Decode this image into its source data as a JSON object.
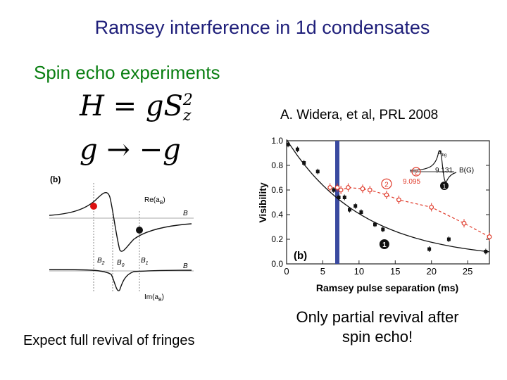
{
  "slide": {
    "title": "Ramsey interference in 1d condensates",
    "subtitle": "Spin echo experiments",
    "citation": "A. Widera, et al, PRL 2008",
    "caption_left": "Expect full revival of fringes",
    "caption_right": "Only partial revival after spin echo!"
  },
  "equations": {
    "hamiltonian": {
      "lhs": "H",
      "op": " = ",
      "coef": "g",
      "S": "S",
      "sup": "2",
      "sub": "z"
    },
    "flip": {
      "from": "g",
      "arrow": " → ",
      "to": "−g"
    }
  },
  "left_diagram": {
    "panel_label": "(b)",
    "re_label": "Re(a",
    "re_sub": "B",
    "im_label": "Im(a",
    "im_sub": "B",
    "axis_label_B": "B",
    "b2": "B",
    "b2_sub": "2",
    "b0": "B",
    "b0_sub": "0",
    "b1": "B",
    "b1_sub": "1",
    "colors": {
      "red_dot": "#dd1111",
      "black_dot": "#111111"
    }
  },
  "right_plot": {
    "panel_label": "(b)",
    "xlabel": "Ramsey pulse separation (ms)",
    "ylabel": "Visibility",
    "x_ticks": [
      "0",
      "5",
      "10",
      "15",
      "20",
      "25"
    ],
    "y_ticks": [
      "0.0",
      "0.2",
      "0.4",
      "0.6",
      "0.8",
      "1.0"
    ],
    "marker_1": "1",
    "marker_2": "2",
    "inset": {
      "label_a": "a",
      "label_a_sub": "bg",
      "value_top": "9.131",
      "axis": "B(G)",
      "value_bottom": "9.095",
      "badge_2": "2",
      "badge_1": "1"
    },
    "colors": {
      "blue_bar": "#3a4aa0",
      "red_series": "#e03a2a",
      "black_series": "#111111"
    }
  },
  "chart_data": {
    "type": "scatter",
    "xlabel": "Ramsey pulse separation (ms)",
    "ylabel": "Visibility",
    "xlim": [
      0,
      28
    ],
    "ylim": [
      0,
      1.0
    ],
    "x_ticks": [
      0,
      5,
      10,
      15,
      20,
      25
    ],
    "y_ticks": [
      0.0,
      0.2,
      0.4,
      0.6,
      0.8,
      1.0
    ],
    "grid": false,
    "series": [
      {
        "name": "1",
        "x": [
          0.2,
          1.5,
          2.4,
          4.3,
          6.5,
          7.2,
          8.0,
          8.7,
          9.5,
          10.3,
          12.2,
          13.3,
          19.7,
          22.4,
          27.5
        ],
        "y": [
          0.97,
          0.93,
          0.82,
          0.75,
          0.6,
          0.54,
          0.54,
          0.44,
          0.47,
          0.42,
          0.32,
          0.28,
          0.12,
          0.2,
          0.1
        ]
      },
      {
        "name": "2",
        "x": [
          6.0,
          7.0,
          7.5,
          8.5,
          10.5,
          11.5,
          13.8,
          15.5,
          20.0,
          24.5,
          28.0
        ],
        "y": [
          0.62,
          0.62,
          0.6,
          0.62,
          0.61,
          0.6,
          0.56,
          0.52,
          0.46,
          0.33,
          0.22
        ]
      }
    ],
    "vertical_band_x": 7.0
  }
}
